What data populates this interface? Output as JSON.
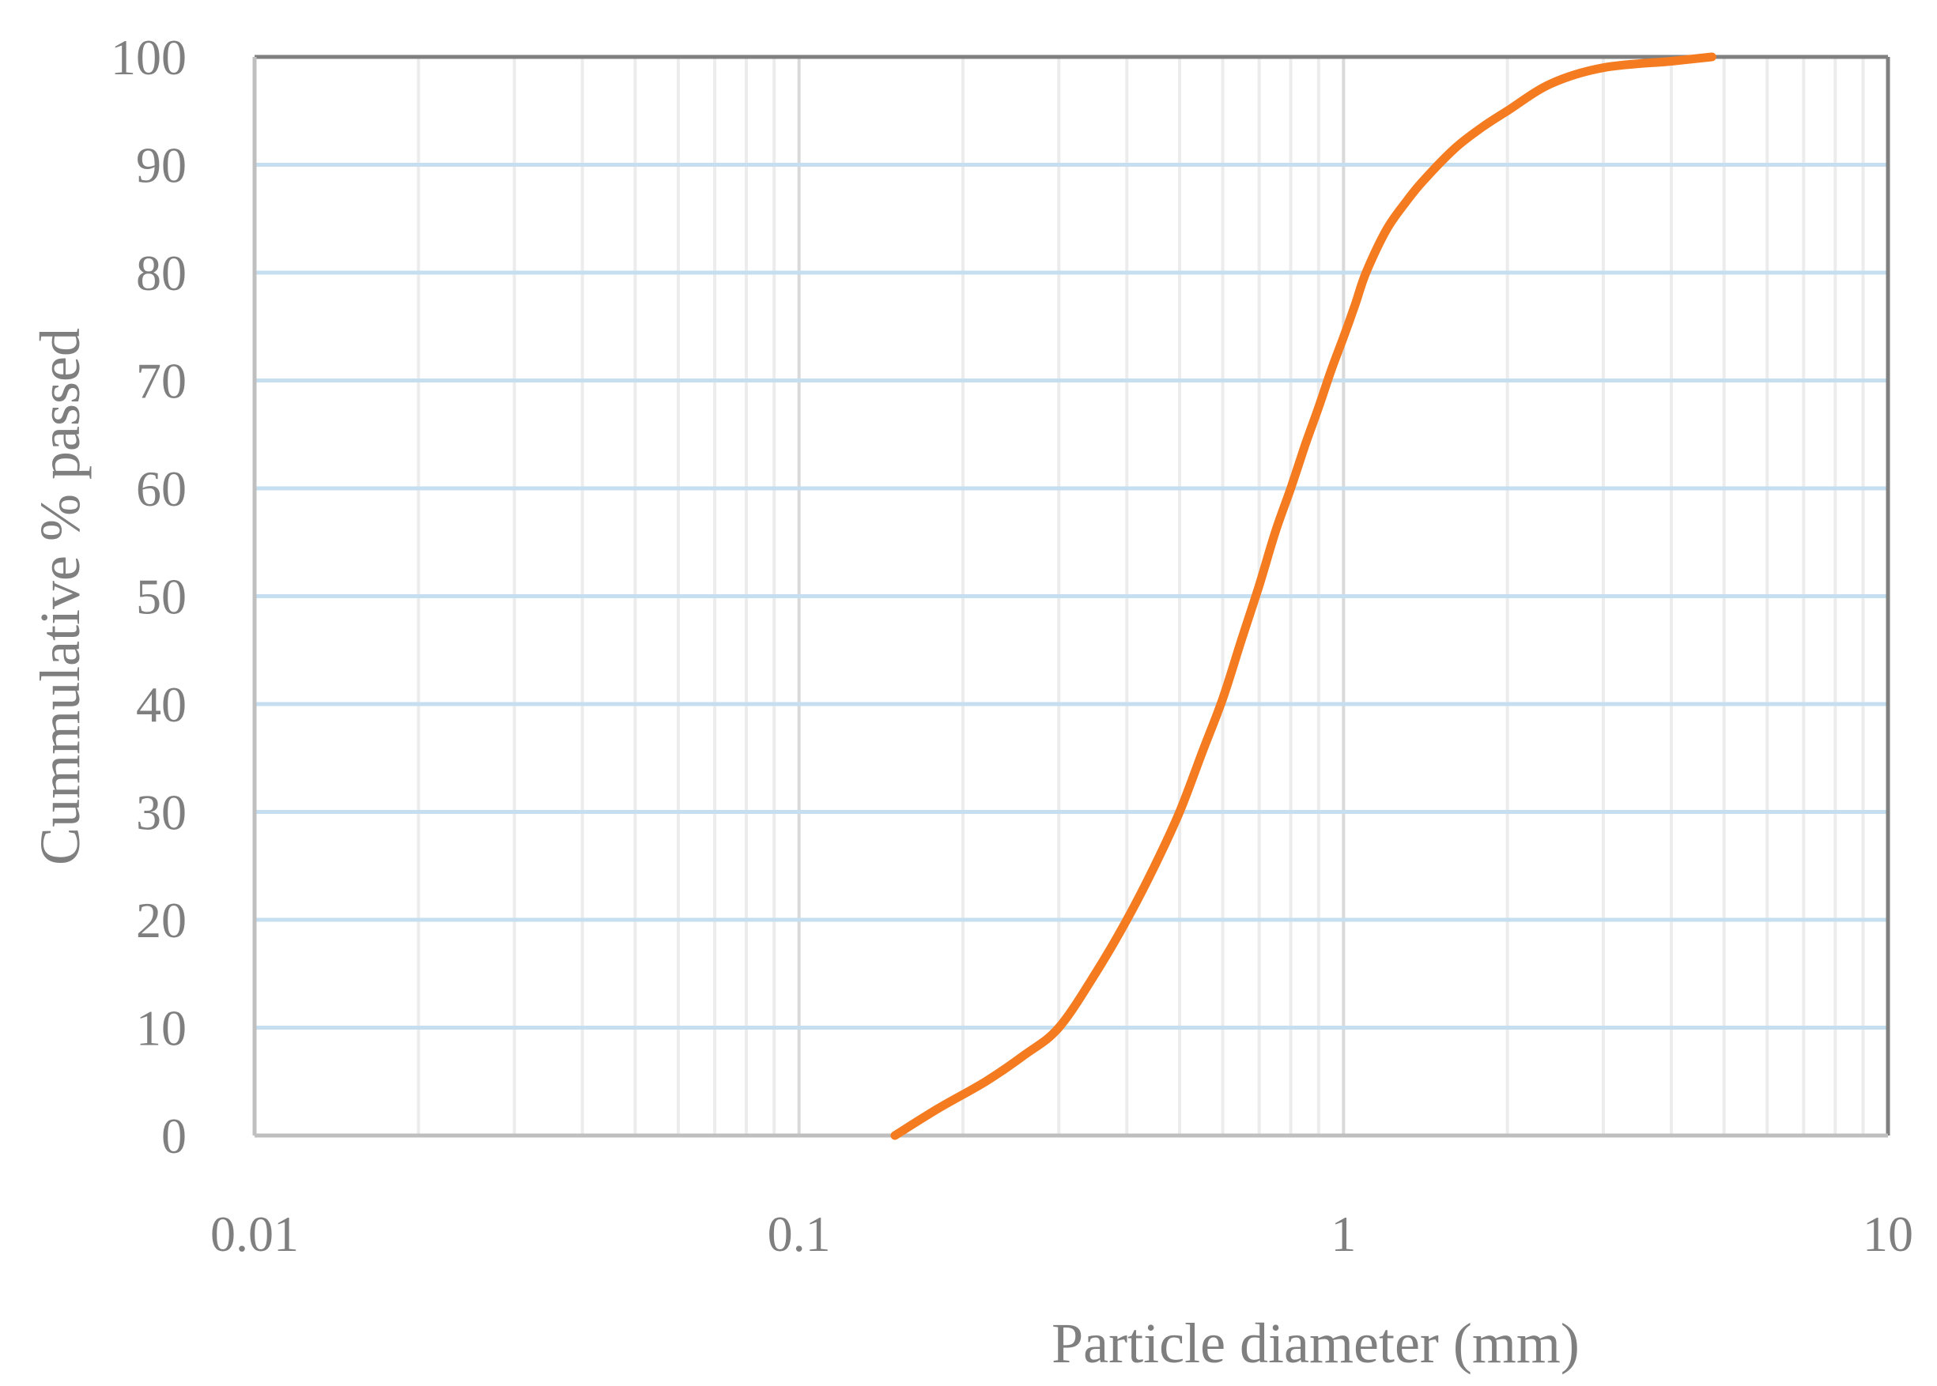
{
  "chart_data": {
    "type": "line",
    "title": "",
    "xlabel": "Particle diameter (mm)",
    "ylabel": "Cummulative % passed",
    "x_scale": "log",
    "xlim": [
      0.01,
      10
    ],
    "ylim": [
      0,
      100
    ],
    "x_ticks": [
      0.01,
      0.1,
      1,
      10
    ],
    "x_tick_labels": [
      "0.01",
      "0.1",
      "1",
      "10"
    ],
    "y_ticks": [
      0,
      10,
      20,
      30,
      40,
      50,
      60,
      70,
      80,
      90,
      100
    ],
    "y_tick_labels": [
      "0",
      "10",
      "20",
      "30",
      "40",
      "50",
      "60",
      "70",
      "80",
      "90",
      "100"
    ],
    "grid": true,
    "legend": "none",
    "series": [
      {
        "color": "#f47b20",
        "x": [
          0.15,
          0.18,
          0.22,
          0.26,
          0.3,
          0.35,
          0.4,
          0.45,
          0.5,
          0.55,
          0.6,
          0.65,
          0.7,
          0.75,
          0.8,
          0.85,
          0.9,
          0.95,
          1.0,
          1.05,
          1.1,
          1.2,
          1.3,
          1.4,
          1.6,
          1.8,
          2.0,
          2.4,
          3.0,
          4.0,
          4.75
        ],
        "y": [
          0,
          2.5,
          5,
          7.5,
          10,
          15,
          20,
          25,
          30,
          35.5,
          40.5,
          46,
          51,
          56,
          60,
          64,
          67.5,
          71,
          74,
          77,
          80,
          84,
          86.5,
          88.5,
          91.5,
          93.5,
          95,
          97.5,
          99,
          99.6,
          100
        ]
      }
    ]
  },
  "colors": {
    "line": "#f47b20",
    "h_grid": "#c5dff0",
    "v_grid_minor": "#ececec",
    "v_grid_major": "#d9d9d9",
    "frame": "#808080",
    "text": "#7f7f7f"
  }
}
